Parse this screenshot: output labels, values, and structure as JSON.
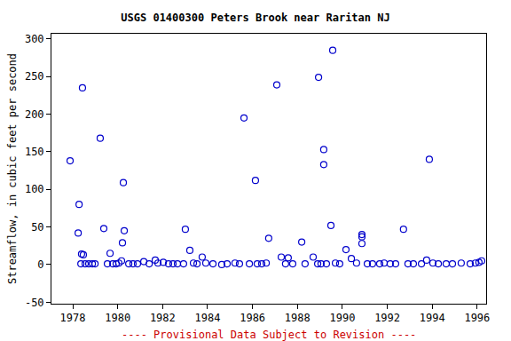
{
  "chart_data": {
    "type": "scatter",
    "title": "USGS 01400300 Peters Brook near Raritan NJ",
    "y_label": "Streamflow, in cubic feet per second",
    "annotations": [
      "---- Provisional Data Subject to Revision ----"
    ],
    "x": [
      1977.88,
      1978.28,
      1978.24,
      1978.43,
      1978.39,
      1978.47,
      1978.36,
      1978.55,
      1978.71,
      1978.87,
      1978.99,
      1979.22,
      1979.38,
      1979.66,
      1979.54,
      1979.78,
      1979.93,
      1980.05,
      1980.25,
      1980.29,
      1980.21,
      1980.17,
      1980.49,
      1980.68,
      1980.88,
      1981.16,
      1981.4,
      1981.67,
      1981.79,
      1982.03,
      1982.26,
      1982.46,
      1982.66,
      1982.93,
      1983.01,
      1983.21,
      1983.37,
      1983.53,
      1983.76,
      1983.92,
      1984.24,
      1984.63,
      1984.87,
      1985.22,
      1985.42,
      1985.62,
      1985.86,
      1986.13,
      1986.21,
      1986.41,
      1986.61,
      1986.72,
      1987.08,
      1987.28,
      1987.59,
      1987.47,
      1987.79,
      1988.19,
      1988.34,
      1988.7,
      1988.9,
      1988.94,
      1989.17,
      1989.17,
      1989.05,
      1989.29,
      1989.49,
      1989.57,
      1989.69,
      1989.88,
      1990.16,
      1990.4,
      1990.63,
      1990.87,
      1990.87,
      1990.87,
      1991.11,
      1991.34,
      1991.66,
      1991.86,
      1992.13,
      1992.37,
      1992.72,
      1992.92,
      1993.16,
      1993.52,
      1993.75,
      1993.87,
      1994.03,
      1994.27,
      1994.62,
      1994.9,
      1995.29,
      1995.69,
      1995.92,
      1996.08,
      1996.2
    ],
    "values": [
      138,
      80,
      42,
      235,
      14,
      13,
      1,
      1,
      1,
      1,
      1,
      168,
      48,
      15,
      1,
      1,
      1,
      2,
      109,
      45,
      29,
      5,
      1,
      1,
      1,
      4,
      1,
      6,
      2,
      3,
      1,
      1,
      1,
      1,
      47,
      19,
      2,
      1,
      10,
      2,
      1,
      0,
      1,
      2,
      1,
      195,
      1,
      112,
      1,
      1,
      2,
      35,
      239,
      10,
      9,
      1,
      1,
      30,
      1,
      10,
      1,
      249,
      153,
      133,
      1,
      1,
      52,
      285,
      2,
      1,
      20,
      8,
      2,
      40,
      37,
      28,
      1,
      1,
      1,
      2,
      1,
      1,
      47,
      1,
      1,
      1,
      6,
      140,
      2,
      1,
      1,
      1,
      2,
      1,
      2,
      3,
      5
    ],
    "color": "#0000cc",
    "marker": "circle-open",
    "annotation_color": "#cc0000",
    "xlim": [
      1977.05,
      1996.4
    ],
    "ylim": [
      -52,
      307
    ],
    "xticks": [
      1978,
      1980,
      1982,
      1984,
      1986,
      1988,
      1990,
      1992,
      1994,
      1996
    ],
    "yticks": [
      -50,
      0,
      50,
      100,
      150,
      200,
      250,
      300
    ],
    "grid": false
  }
}
